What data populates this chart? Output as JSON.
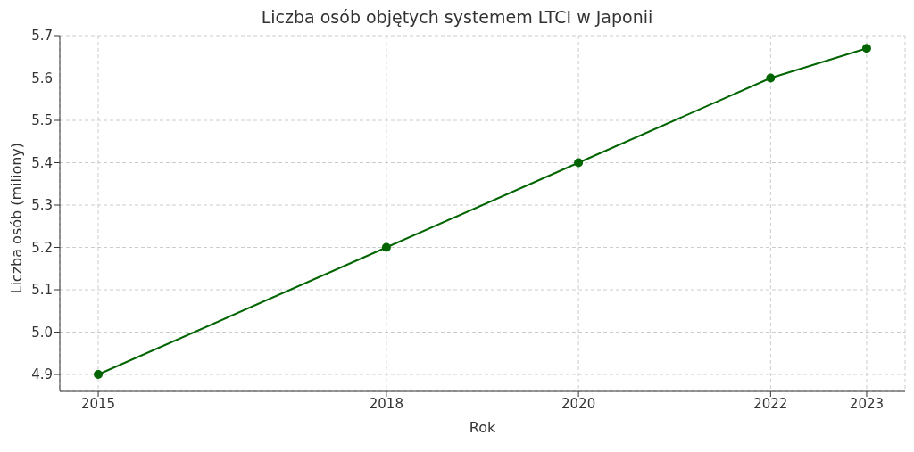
{
  "chart_data": {
    "type": "line",
    "title": "Liczba osób objętych systemem LTCI w Japonii",
    "xlabel": "Rok",
    "ylabel": "Liczba osób (miliony)",
    "x": [
      2015,
      2018,
      2020,
      2022,
      2023
    ],
    "series": [
      {
        "color": "#006400",
        "values": [
          4.9,
          5.2,
          5.4,
          5.6,
          5.67
        ]
      }
    ],
    "xlim": [
      2014.6,
      2023.4
    ],
    "xticks": [
      2015,
      2018,
      2020,
      2022,
      2023
    ],
    "ylim": [
      4.86,
      5.7
    ],
    "yticks": [
      4.9,
      {
        "value": 5,
        "label": "5.0"
      },
      5.1,
      5.2,
      5.3,
      5.4,
      5.5,
      5.6,
      5.7
    ],
    "grid": true,
    "marker": "circle",
    "line_style": "solid",
    "legend": false
  }
}
